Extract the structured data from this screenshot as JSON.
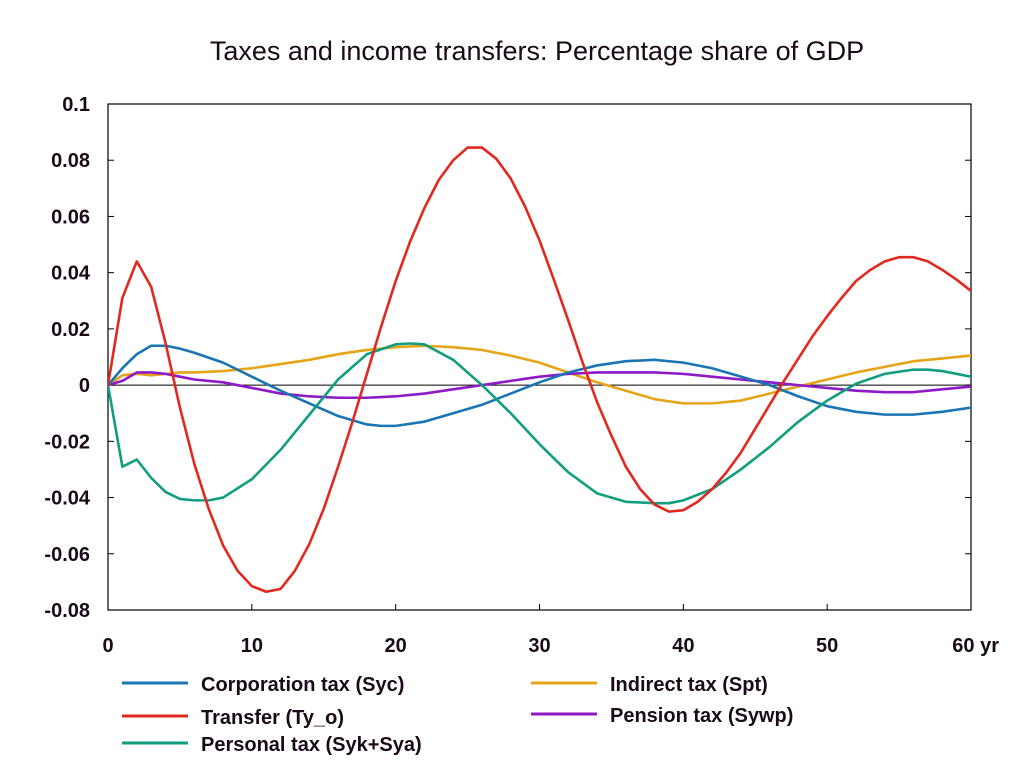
{
  "chart_data": {
    "type": "line",
    "title": "Taxes and income transfers: Percentage share of GDP",
    "xlabel": "",
    "ylabel": "",
    "xlim": [
      0,
      60
    ],
    "ylim": [
      -0.08,
      0.1
    ],
    "x_ticks": [
      0,
      10,
      20,
      30,
      40,
      50,
      60
    ],
    "x_tick_labels": [
      "0",
      "10",
      "20",
      "30",
      "40",
      "50",
      "60 yr"
    ],
    "y_ticks": [
      -0.08,
      -0.06,
      -0.04,
      -0.02,
      0,
      0.02,
      0.04,
      0.06,
      0.08,
      0.1
    ],
    "y_tick_labels": [
      "-0.08",
      "-0.06",
      "-0.04",
      "-0.02",
      "0",
      "0.02",
      "0.04",
      "0.06",
      "0.08",
      "0.1"
    ],
    "grid": false,
    "zero_line": true,
    "legend_position": "bottom",
    "series": [
      {
        "name": "Corporation tax (Syc)",
        "color": "#1a75b4",
        "x": [
          0,
          1,
          2,
          3,
          4,
          5,
          6,
          8,
          10,
          12,
          14,
          16,
          18,
          19,
          20,
          22,
          24,
          26,
          28,
          30,
          32,
          34,
          36,
          38,
          40,
          42,
          44,
          46,
          48,
          50,
          52,
          54,
          56,
          58,
          60
        ],
        "y": [
          0,
          0.006,
          0.011,
          0.014,
          0.014,
          0.013,
          0.0115,
          0.008,
          0.003,
          -0.002,
          -0.0065,
          -0.011,
          -0.014,
          -0.0145,
          -0.0145,
          -0.013,
          -0.01,
          -0.007,
          -0.003,
          0.001,
          0.0045,
          0.007,
          0.0085,
          0.009,
          0.008,
          0.006,
          0.003,
          0,
          -0.004,
          -0.0075,
          -0.0095,
          -0.0105,
          -0.0105,
          -0.0095,
          -0.008
        ]
      },
      {
        "name": "Transfer (Ty_o)",
        "color": "#e0291f",
        "x": [
          0,
          1,
          2,
          3,
          4,
          5,
          6,
          7,
          8,
          9,
          10,
          11,
          12,
          13,
          14,
          15,
          16,
          17,
          18,
          19,
          20,
          21,
          22,
          23,
          24,
          25,
          26,
          27,
          28,
          29,
          30,
          31,
          32,
          33,
          34,
          35,
          36,
          37,
          38,
          39,
          40,
          41,
          42,
          43,
          44,
          45,
          46,
          47,
          48,
          49,
          50,
          51,
          52,
          53,
          54,
          55,
          56,
          57,
          58,
          59,
          60
        ],
        "y": [
          0,
          0.031,
          0.044,
          0.035,
          0.015,
          -0.008,
          -0.028,
          -0.044,
          -0.057,
          -0.066,
          -0.0715,
          -0.0735,
          -0.0725,
          -0.066,
          -0.0565,
          -0.044,
          -0.029,
          -0.013,
          0.004,
          0.021,
          0.037,
          0.051,
          0.063,
          0.073,
          0.08,
          0.0845,
          0.0845,
          0.0805,
          0.0735,
          0.0635,
          0.0515,
          0.0375,
          0.023,
          0.008,
          -0.006,
          -0.018,
          -0.029,
          -0.037,
          -0.0425,
          -0.045,
          -0.0445,
          -0.0415,
          -0.037,
          -0.031,
          -0.024,
          -0.0155,
          -0.007,
          0.0015,
          0.0095,
          0.0175,
          0.0245,
          0.031,
          0.037,
          0.041,
          0.044,
          0.0455,
          0.0455,
          0.044,
          0.041,
          0.0375,
          0.0335
        ]
      },
      {
        "name": "Personal tax (Syk+Sya)",
        "color": "#119e80",
        "x": [
          0,
          1,
          2,
          3,
          4,
          5,
          6,
          7,
          8,
          10,
          12,
          14,
          16,
          18,
          20,
          21,
          22,
          24,
          26,
          28,
          30,
          32,
          34,
          36,
          38,
          39,
          40,
          42,
          44,
          46,
          48,
          50,
          52,
          54,
          56,
          57,
          58,
          60
        ],
        "y": [
          0,
          -0.029,
          -0.0265,
          -0.033,
          -0.038,
          -0.0405,
          -0.041,
          -0.041,
          -0.04,
          -0.0335,
          -0.023,
          -0.0105,
          0.002,
          0.011,
          0.0145,
          0.0148,
          0.0145,
          0.009,
          0,
          -0.01,
          -0.021,
          -0.031,
          -0.0385,
          -0.0415,
          -0.042,
          -0.042,
          -0.041,
          -0.037,
          -0.03,
          -0.022,
          -0.013,
          -0.0055,
          0.0005,
          0.004,
          0.0055,
          0.0055,
          0.005,
          0.003
        ]
      },
      {
        "name": "Indirect tax (Spt)",
        "color": "#e6a519",
        "x": [
          0,
          1,
          2,
          3,
          4,
          5,
          6,
          8,
          10,
          12,
          14,
          16,
          18,
          20,
          22,
          24,
          26,
          28,
          30,
          32,
          34,
          36,
          38,
          40,
          42,
          44,
          46,
          48,
          50,
          52,
          54,
          56,
          58,
          60
        ],
        "y": [
          0,
          0.0035,
          0.004,
          0.0035,
          0.004,
          0.0045,
          0.0045,
          0.005,
          0.006,
          0.0075,
          0.009,
          0.011,
          0.0125,
          0.0135,
          0.014,
          0.0135,
          0.0125,
          0.0105,
          0.008,
          0.0045,
          0.001,
          -0.002,
          -0.005,
          -0.0065,
          -0.0065,
          -0.0055,
          -0.003,
          -0.0005,
          0.002,
          0.0045,
          0.0065,
          0.0085,
          0.0095,
          0.0105
        ]
      },
      {
        "name": "Pension tax (Sywp)",
        "color": "#8e19c6",
        "x": [
          0,
          1,
          2,
          3,
          4,
          5,
          6,
          8,
          10,
          12,
          14,
          16,
          18,
          20,
          22,
          24,
          26,
          28,
          30,
          32,
          34,
          36,
          38,
          40,
          42,
          44,
          46,
          48,
          50,
          52,
          54,
          56,
          58,
          60
        ],
        "y": [
          0,
          0.0015,
          0.0045,
          0.0045,
          0.004,
          0.003,
          0.002,
          0.001,
          -0.001,
          -0.003,
          -0.004,
          -0.0045,
          -0.0045,
          -0.004,
          -0.003,
          -0.0015,
          0,
          0.0015,
          0.003,
          0.004,
          0.0045,
          0.0045,
          0.0045,
          0.004,
          0.003,
          0.002,
          0.001,
          0,
          -0.001,
          -0.002,
          -0.0025,
          -0.0025,
          -0.0015,
          -0.0005
        ]
      }
    ]
  },
  "legend": {
    "items": [
      {
        "label": "Corporation tax (Syc)",
        "color": "#1a75b4"
      },
      {
        "label": "Transfer (Ty_o)",
        "color": "#e0291f"
      },
      {
        "label": "Personal tax (Syk+Sya)",
        "color": "#119e80"
      },
      {
        "label": "Indirect tax (Spt)",
        "color": "#e6a519"
      },
      {
        "label": "Pension tax (Sywp)",
        "color": "#8e19c6"
      }
    ]
  }
}
